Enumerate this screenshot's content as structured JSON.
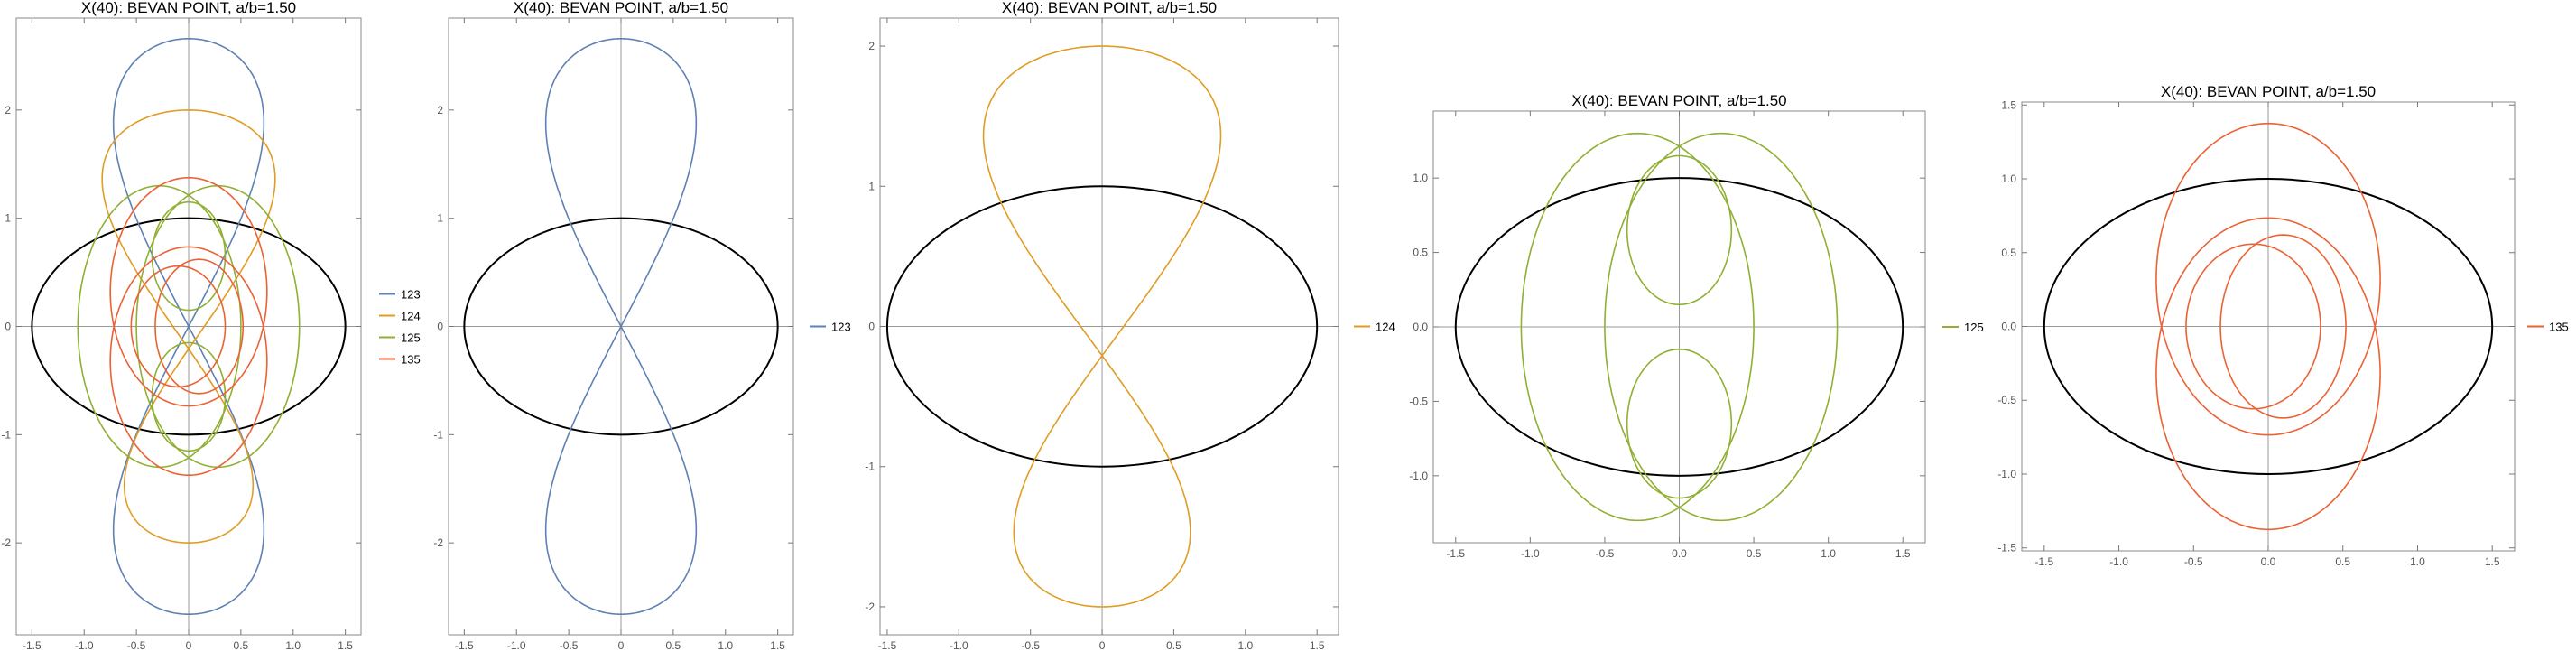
{
  "chart_data": [
    {
      "type": "line",
      "title": "X(40): BEVAN POINT, a/b=1.50",
      "xlim": [
        -1.65,
        1.65
      ],
      "ylim": [
        -2.85,
        2.85
      ],
      "xticks": [
        -1.5,
        -1.0,
        -0.5,
        0,
        0.5,
        1.0,
        1.5
      ],
      "xtick_labels": [
        "-1.5",
        "-1.0",
        "-0.5",
        "0",
        "0.5",
        "1.0",
        "1.5"
      ],
      "yticks": [
        -2,
        -1,
        0,
        1,
        2
      ],
      "ytick_labels": [
        "-2",
        "-1",
        "0",
        "1",
        "2"
      ],
      "ellipse": {
        "a": 1.5,
        "b": 1.0,
        "color": "#000000"
      },
      "legend_position": "right",
      "series": [
        {
          "name": "123",
          "color": "#5e81b5",
          "shape": "figure8",
          "cx": 0,
          "cy": 0,
          "rx": 0.72,
          "ry": 1.33,
          "twist": 0.0
        },
        {
          "name": "124",
          "color": "#e19c24",
          "shape": "figure8",
          "cx": 0,
          "cy": 0,
          "rx": 0.72,
          "ry": 1.0,
          "twist": 0.3
        },
        {
          "name": "125",
          "color": "#8fb032",
          "shape": "pairs",
          "inner_cx": 0,
          "inner_cy": 0.65,
          "inner_rx": 0.35,
          "inner_ry": 0.5,
          "outer_cx": 0.28,
          "outer_rx": 0.78,
          "outer_ry": 1.3
        },
        {
          "name": "135",
          "color": "#eb6235",
          "shape": "loops",
          "outer_rx": 0.75,
          "outer_ry": 1.37,
          "inner_cx": 0.1,
          "inner_rx": 0.42,
          "inner_ry": 0.62
        }
      ]
    },
    {
      "type": "line",
      "title": "X(40): BEVAN POINT, a/b=1.50",
      "xlim": [
        -1.65,
        1.65
      ],
      "ylim": [
        -2.85,
        2.85
      ],
      "xticks": [
        -1.5,
        -1.0,
        -0.5,
        0,
        0.5,
        1.0,
        1.5
      ],
      "xtick_labels": [
        "-1.5",
        "-1.0",
        "-0.5",
        "0",
        "0.5",
        "1.0",
        "1.5"
      ],
      "yticks": [
        -2,
        -1,
        0,
        1,
        2
      ],
      "ytick_labels": [
        "-2",
        "-1",
        "0",
        "1",
        "2"
      ],
      "ellipse": {
        "a": 1.5,
        "b": 1.0,
        "color": "#000000"
      },
      "legend_position": "right",
      "series": [
        {
          "name": "123",
          "color": "#5e81b5",
          "shape": "figure8",
          "cx": 0,
          "cy": 0,
          "rx": 0.72,
          "ry": 1.33,
          "twist": 0.0
        }
      ]
    },
    {
      "type": "line",
      "title": "X(40): BEVAN POINT, a/b=1.50",
      "xlim": [
        -1.55,
        1.65
      ],
      "ylim": [
        -2.2,
        2.2
      ],
      "xticks": [
        -1.5,
        -1.0,
        -0.5,
        0,
        0.5,
        1.0,
        1.5
      ],
      "xtick_labels": [
        "-1.5",
        "-1.0",
        "-0.5",
        "0",
        "0.5",
        "1.0",
        "1.5"
      ],
      "yticks": [
        -2,
        -1,
        0,
        1,
        2
      ],
      "ytick_labels": [
        "-2",
        "-1",
        "0",
        "1",
        "2"
      ],
      "ellipse": {
        "a": 1.5,
        "b": 1.0,
        "color": "#000000"
      },
      "legend_position": "right",
      "series": [
        {
          "name": "124",
          "color": "#e19c24",
          "shape": "figure8",
          "cx": 0,
          "cy": 0,
          "rx": 0.72,
          "ry": 1.0,
          "twist": 0.3
        }
      ]
    },
    {
      "type": "line",
      "title": "X(40): BEVAN POINT, a/b=1.50",
      "xlim": [
        -1.65,
        1.65
      ],
      "ylim": [
        -1.45,
        1.45
      ],
      "xticks": [
        -1.5,
        -1.0,
        -0.5,
        0,
        0.5,
        1.0,
        1.5
      ],
      "xtick_labels": [
        "-1.5",
        "-1.0",
        "-0.5",
        "0.0",
        "0.5",
        "1.0",
        "1.5"
      ],
      "yticks": [
        -1.0,
        -0.5,
        0,
        0.5,
        1.0
      ],
      "ytick_labels": [
        "-1.0",
        "-0.5",
        "0.0",
        "0.5",
        "1.0"
      ],
      "ellipse": {
        "a": 1.5,
        "b": 1.0,
        "color": "#000000"
      },
      "legend_position": "right",
      "series": [
        {
          "name": "125",
          "color": "#8fb032",
          "shape": "pairs",
          "inner_cx": 0,
          "inner_cy": 0.65,
          "inner_rx": 0.35,
          "inner_ry": 0.5,
          "outer_cx": 0.28,
          "outer_rx": 0.78,
          "outer_ry": 1.3
        }
      ]
    },
    {
      "type": "line",
      "title": "X(40): BEVAN POINT, a/b=1.50",
      "xlim": [
        -1.65,
        1.65
      ],
      "ylim": [
        -1.52,
        1.52
      ],
      "xticks": [
        -1.5,
        -1.0,
        -0.5,
        0,
        0.5,
        1.0,
        1.5
      ],
      "xtick_labels": [
        "-1.5",
        "-1.0",
        "-0.5",
        "0.0",
        "0.5",
        "1.0",
        "1.5"
      ],
      "yticks": [
        -1.5,
        -1.0,
        -0.5,
        0,
        0.5,
        1.0,
        1.5
      ],
      "ytick_labels": [
        "-1.5",
        "-1.0",
        "-0.5",
        "0.0",
        "0.5",
        "1.0",
        "1.5"
      ],
      "ellipse": {
        "a": 1.5,
        "b": 1.0,
        "color": "#000000"
      },
      "legend_position": "right",
      "series": [
        {
          "name": "135",
          "color": "#eb6235",
          "shape": "loops",
          "outer_rx": 0.75,
          "outer_ry": 1.37,
          "inner_cx": 0.1,
          "inner_rx": 0.42,
          "inner_ry": 0.62
        }
      ]
    }
  ]
}
